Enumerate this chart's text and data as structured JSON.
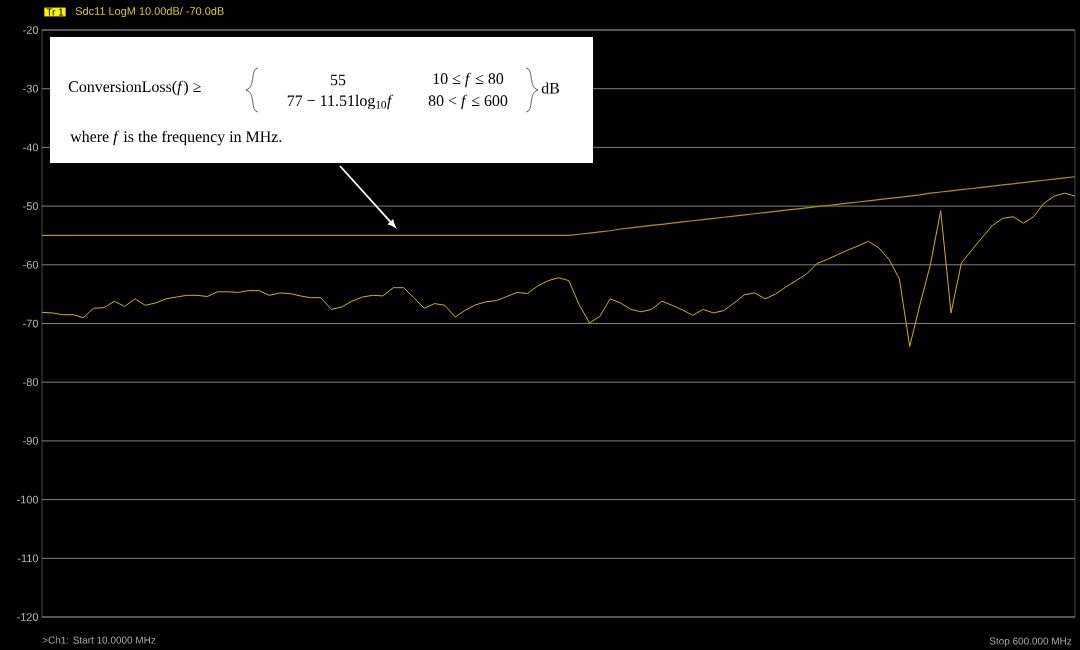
{
  "chart_data": {
    "type": "line",
    "title": "Sdc11 LogM 10.00dB/ -70.0dB",
    "annotations": [
      "ConversionLoss(*f*) ≥",
      "55",
      "10 ≤ *f* ≤ 80",
      "77 − 11.51log$_{10}$*f*",
      "80 < *f* ≤ 600",
      "dB",
      "where *f* is the frequency in MHz.",
      "Tr 1",
      ">Ch1:  Start  10.0000 MHz",
      "Stop 600.000 MHz"
    ],
    "categories": [
      null,
      null,
      null,
      null,
      null,
      null,
      null,
      null,
      null,
      null,
      null,
      null,
      null,
      null,
      null,
      null,
      null,
      null,
      null,
      null,
      null,
      null,
      null,
      null,
      null,
      null,
      null,
      null,
      null,
      null,
      null,
      null,
      null,
      null,
      null,
      null,
      null,
      null,
      null,
      null,
      null,
      null,
      null,
      null,
      null,
      null,
      null,
      null,
      null,
      null,
      null,
      null,
      null,
      null,
      null,
      null,
      null,
      null,
      null,
      null,
      null,
      null,
      null,
      null,
      null,
      null,
      null,
      null,
      null,
      null,
      null,
      null,
      null,
      null,
      null,
      null,
      null,
      null,
      null,
      null,
      null,
      null,
      null,
      null,
      null,
      null,
      null,
      null,
      null,
      null,
      null,
      null,
      null,
      null,
      null,
      null,
      null,
      null,
      null,
      null,
      null
    ],
    "series": [
      {
        "color": "#c9b800",
        "values": [
          -68.1,
          -68.2,
          -68.5,
          -68.5,
          -69.0,
          -67.4,
          -67.3,
          -66.2,
          -67.1,
          -65.8,
          -66.9,
          -66.5,
          -65.8,
          -65.5,
          -65.2,
          -65.2,
          -65.4,
          -64.6,
          -64.6,
          -64.7,
          -64.4,
          -64.4,
          -65.2,
          -64.8,
          -64.9,
          -65.3,
          -65.6,
          -65.6,
          -67.6,
          -67.2,
          -66.2,
          -65.5,
          -65.2,
          -65.3,
          -63.9,
          -63.9,
          -65.6,
          -67.4,
          -66.6,
          -66.9,
          -68.9,
          -67.7,
          -66.8,
          -66.3,
          -66.1,
          -65.4,
          -64.7,
          -64.9,
          -63.6,
          -62.7,
          -62.2,
          -62.7,
          -66.8,
          -69.9,
          -68.8,
          -65.8,
          -66.5,
          -67.6,
          -68.0,
          -67.6,
          -66.2,
          -66.9,
          -67.7,
          -68.6,
          -67.6,
          -68.2,
          -67.8,
          -66.5,
          -65.1,
          -64.8,
          -65.8,
          -65.0,
          -63.8,
          -62.7,
          -61.6,
          -59.8,
          -59.1,
          -58.3,
          -57.5,
          -56.8,
          -56.0,
          -57.1,
          -59.1,
          -62.4,
          -73.9,
          -66.7,
          -60.0,
          -50.8,
          -68.2,
          -59.7,
          -57.5,
          -55.4,
          -53.3,
          -52.1,
          -51.8,
          -52.9,
          -51.8,
          -49.5,
          -48.3,
          -47.8,
          -48.3
        ]
      },
      {
        "color": "#a89a00",
        "values": [
          -55,
          -55,
          -55,
          -55,
          -55,
          -55,
          -55,
          -55,
          -55,
          -55,
          -55,
          -55,
          -55,
          -55,
          -55,
          -55,
          -55,
          -55,
          -55,
          -55,
          -55,
          -55,
          -55,
          -55,
          -55,
          -55,
          -55,
          -55,
          -55,
          -55,
          -55,
          -55,
          -55,
          -55,
          -55,
          -55,
          -55,
          -55,
          -55,
          -55,
          -55,
          -55,
          -55,
          -55,
          -55,
          -55,
          -55,
          -55,
          -55,
          -55,
          -55,
          -55.0,
          -54.8,
          -54.6,
          -54.4,
          -54.2,
          -53.9,
          -53.7,
          -53.5,
          -53.3,
          -53.1,
          -52.9,
          -52.7,
          -52.5,
          -52.3,
          -52.1,
          -51.9,
          -51.7,
          -51.5,
          -51.3,
          -51.1,
          -50.9,
          -50.7,
          -50.5,
          -50.3,
          -50.1,
          -49.9,
          -49.7,
          -49.5,
          -49.3,
          -49.1,
          -48.9,
          -48.7,
          -48.5,
          -48.3,
          -48.1,
          -47.8,
          -47.6,
          -47.4,
          -47.2,
          -47.0,
          -46.8,
          -46.6,
          -46.4,
          -46.2,
          -46.0,
          -45.8,
          -45.6,
          -45.4,
          -45.2,
          -45.0
        ]
      }
    ],
    "ylim": [
      -120,
      -20
    ],
    "yticks": [
      -120,
      -110,
      -100,
      -90,
      -80,
      -70,
      -60,
      -50,
      -40,
      -30,
      -20
    ],
    "grid": "y",
    "tick_labels": "y"
  }
}
